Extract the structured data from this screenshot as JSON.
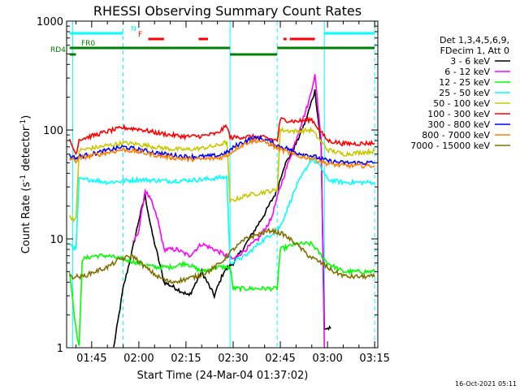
{
  "chart_data": {
    "type": "line",
    "title": "RHESSI Observing Summary Count Rates",
    "xlabel": "Start Time (24-Mar-04 01:37:02)",
    "ylabel": "Count Rate (s⁻¹ detector⁻¹)",
    "y_scale": "log",
    "ylim": [
      1,
      1000
    ],
    "xlim": [
      "01:37:02",
      "03:16:00"
    ],
    "x_ticks": [
      "01:45",
      "02:00",
      "02:15",
      "02:30",
      "02:45",
      "03:00",
      "03:15"
    ],
    "y_ticks": [
      "1",
      "10",
      "100",
      "1000"
    ],
    "grid": false,
    "legend_position": "right",
    "legend_header": [
      "Det 1,3,4,5,6,9,",
      "FDecim 1, Att 0"
    ],
    "timestamp": "16-Oct-2021 05:11",
    "flag_labels": [
      "N",
      "F",
      "FR0",
      "RD4"
    ],
    "flags": [
      {
        "label": "N",
        "color": "#00ffff",
        "segments": [
          [
            "01:38",
            "01:55"
          ],
          [
            "02:59",
            "03:15"
          ]
        ]
      },
      {
        "label": "F",
        "color": "#ff0000",
        "segments": [
          [
            "02:03",
            "02:08"
          ],
          [
            "02:19",
            "02:22"
          ],
          [
            "02:46",
            "02:47"
          ],
          [
            "02:48",
            "02:56"
          ]
        ]
      },
      {
        "label": "FR0",
        "color": "#008000",
        "segments": [
          [
            "01:38",
            "02:29"
          ],
          [
            "02:44",
            "03:15"
          ]
        ]
      },
      {
        "label": "RD4",
        "color": "#008000",
        "segments": [
          [
            "01:38",
            "01:40"
          ],
          [
            "02:29",
            "02:44"
          ]
        ]
      }
    ],
    "vertical_markers": [
      {
        "time": "01:39",
        "color": "#00ffff",
        "style": "solid"
      },
      {
        "time": "01:55",
        "color": "#00ffff",
        "style": "dashed"
      },
      {
        "time": "02:29",
        "color": "#00ffff",
        "style": "solid"
      },
      {
        "time": "02:44",
        "color": "#00ffff",
        "style": "dashed"
      },
      {
        "time": "02:59",
        "color": "#00ffff",
        "style": "solid"
      },
      {
        "time": "03:15",
        "color": "#00ffff",
        "style": "dashed"
      }
    ],
    "series": [
      {
        "name": "3 - 6 keV",
        "color": "#000000",
        "points": [
          [
            "01:52",
            1.0
          ],
          [
            "01:55",
            3.5
          ],
          [
            "01:58",
            8
          ],
          [
            "02:00",
            15
          ],
          [
            "02:02",
            25
          ],
          [
            "02:04",
            12
          ],
          [
            "02:06",
            7
          ],
          [
            "02:08",
            4
          ],
          [
            "02:12",
            3.5
          ],
          [
            "02:16",
            3
          ],
          [
            "02:20",
            5
          ],
          [
            "02:24",
            3
          ],
          [
            "02:27",
            5
          ],
          [
            "02:30",
            6
          ],
          [
            "02:33",
            8
          ],
          [
            "02:36",
            11
          ],
          [
            "02:40",
            17
          ],
          [
            "02:44",
            28
          ],
          [
            "02:46",
            45
          ],
          [
            "02:50",
            75
          ],
          [
            "02:53",
            120
          ],
          [
            "02:56",
            230
          ],
          [
            "02:58",
            70
          ],
          [
            "02:59",
            1.5
          ],
          [
            "03:01",
            1.5
          ]
        ]
      },
      {
        "name": "6 - 12 keV",
        "color": "#ff00ff",
        "points": [
          [
            "01:58",
            9
          ],
          [
            "02:00",
            12
          ],
          [
            "02:02",
            28
          ],
          [
            "02:04",
            22
          ],
          [
            "02:06",
            15
          ],
          [
            "02:08",
            8
          ],
          [
            "02:12",
            8
          ],
          [
            "02:16",
            7
          ],
          [
            "02:20",
            9
          ],
          [
            "02:24",
            8
          ],
          [
            "02:28",
            7
          ],
          [
            "02:30",
            6.5
          ],
          [
            "02:34",
            8
          ],
          [
            "02:38",
            10
          ],
          [
            "02:42",
            15
          ],
          [
            "02:45",
            30
          ],
          [
            "02:48",
            55
          ],
          [
            "02:51",
            100
          ],
          [
            "02:54",
            180
          ],
          [
            "02:56",
            320
          ],
          [
            "02:58",
            80
          ],
          [
            "02:59",
            1.0
          ]
        ]
      },
      {
        "name": "12 - 25 keV",
        "color": "#00ff00",
        "points": [
          [
            "01:38",
            5
          ],
          [
            "01:40",
            1.5
          ],
          [
            "01:41",
            1.0
          ],
          [
            "01:42",
            6.5
          ],
          [
            "01:46",
            7
          ],
          [
            "01:50",
            7
          ],
          [
            "01:55",
            6.5
          ],
          [
            "02:00",
            6
          ],
          [
            "02:05",
            5.5
          ],
          [
            "02:10",
            5.5
          ],
          [
            "02:15",
            6
          ],
          [
            "02:20",
            5
          ],
          [
            "02:25",
            5.5
          ],
          [
            "02:29",
            5.5
          ],
          [
            "02:30",
            3.5
          ],
          [
            "02:35",
            3.5
          ],
          [
            "02:40",
            3.5
          ],
          [
            "02:44",
            3.5
          ],
          [
            "02:45",
            8
          ],
          [
            "02:50",
            9
          ],
          [
            "02:55",
            9
          ],
          [
            "03:00",
            6
          ],
          [
            "03:05",
            5
          ],
          [
            "03:10",
            5
          ],
          [
            "03:15",
            5
          ]
        ]
      },
      {
        "name": "25 - 50 keV",
        "color": "#00ffff",
        "points": [
          [
            "01:38",
            9
          ],
          [
            "01:40",
            8
          ],
          [
            "01:41",
            35
          ],
          [
            "01:45",
            35
          ],
          [
            "01:50",
            33
          ],
          [
            "01:55",
            34
          ],
          [
            "02:00",
            35
          ],
          [
            "02:10",
            34
          ],
          [
            "02:20",
            35
          ],
          [
            "02:28",
            37
          ],
          [
            "02:29",
            6
          ],
          [
            "02:34",
            7
          ],
          [
            "02:38",
            9
          ],
          [
            "02:42",
            11
          ],
          [
            "02:45",
            13
          ],
          [
            "02:50",
            30
          ],
          [
            "02:55",
            55
          ],
          [
            "02:58",
            45
          ],
          [
            "03:00",
            35
          ],
          [
            "03:05",
            33
          ],
          [
            "03:10",
            33
          ],
          [
            "03:15",
            33
          ]
        ]
      },
      {
        "name": "50 - 100 keV",
        "color": "#c8c800",
        "points": [
          [
            "01:38",
            16
          ],
          [
            "01:40",
            15
          ],
          [
            "01:41",
            65
          ],
          [
            "01:45",
            68
          ],
          [
            "01:50",
            72
          ],
          [
            "01:55",
            76
          ],
          [
            "02:00",
            74
          ],
          [
            "02:05",
            70
          ],
          [
            "02:10",
            67
          ],
          [
            "02:15",
            66
          ],
          [
            "02:20",
            68
          ],
          [
            "02:25",
            72
          ],
          [
            "02:28",
            78
          ],
          [
            "02:29",
            22
          ],
          [
            "02:34",
            25
          ],
          [
            "02:40",
            27
          ],
          [
            "02:44",
            28
          ],
          [
            "02:45",
            100
          ],
          [
            "02:50",
            97
          ],
          [
            "02:55",
            100
          ],
          [
            "03:00",
            66
          ],
          [
            "03:05",
            60
          ],
          [
            "03:10",
            62
          ],
          [
            "03:15",
            64
          ]
        ]
      },
      {
        "name": "100 - 300 keV",
        "color": "#ff0000",
        "points": [
          [
            "01:38",
            80
          ],
          [
            "01:40",
            60
          ],
          [
            "01:41",
            82
          ],
          [
            "01:45",
            88
          ],
          [
            "01:50",
            97
          ],
          [
            "01:55",
            105
          ],
          [
            "02:00",
            102
          ],
          [
            "02:05",
            95
          ],
          [
            "02:10",
            90
          ],
          [
            "02:15",
            87
          ],
          [
            "02:20",
            88
          ],
          [
            "02:25",
            93
          ],
          [
            "02:28",
            110
          ],
          [
            "02:29",
            85
          ],
          [
            "02:35",
            87
          ],
          [
            "02:40",
            85
          ],
          [
            "02:44",
            80
          ],
          [
            "02:45",
            125
          ],
          [
            "02:50",
            120
          ],
          [
            "02:55",
            125
          ],
          [
            "03:00",
            80
          ],
          [
            "03:05",
            75
          ],
          [
            "03:10",
            75
          ],
          [
            "03:15",
            76
          ]
        ]
      },
      {
        "name": "300 - 800 keV",
        "color": "#0000ff",
        "points": [
          [
            "01:38",
            58
          ],
          [
            "01:40",
            55
          ],
          [
            "01:41",
            57
          ],
          [
            "01:45",
            60
          ],
          [
            "01:50",
            65
          ],
          [
            "01:55",
            70
          ],
          [
            "02:00",
            66
          ],
          [
            "02:05",
            62
          ],
          [
            "02:10",
            59
          ],
          [
            "02:15",
            57
          ],
          [
            "02:20",
            57
          ],
          [
            "02:25",
            58
          ],
          [
            "02:28",
            62
          ],
          [
            "02:31",
            72
          ],
          [
            "02:35",
            82
          ],
          [
            "02:38",
            85
          ],
          [
            "02:41",
            80
          ],
          [
            "02:44",
            72
          ],
          [
            "02:47",
            68
          ],
          [
            "02:50",
            62
          ],
          [
            "02:55",
            58
          ],
          [
            "03:00",
            52
          ],
          [
            "03:05",
            50
          ],
          [
            "03:10",
            50
          ],
          [
            "03:15",
            50
          ]
        ]
      },
      {
        "name": "800 - 7000 keV",
        "color": "#ff8000",
        "points": [
          [
            "01:38",
            55
          ],
          [
            "01:40",
            52
          ],
          [
            "01:41",
            55
          ],
          [
            "01:45",
            58
          ],
          [
            "01:50",
            62
          ],
          [
            "01:55",
            66
          ],
          [
            "02:00",
            63
          ],
          [
            "02:05",
            59
          ],
          [
            "02:10",
            56
          ],
          [
            "02:15",
            54
          ],
          [
            "02:20",
            54
          ],
          [
            "02:25",
            55
          ],
          [
            "02:28",
            58
          ],
          [
            "02:31",
            68
          ],
          [
            "02:35",
            78
          ],
          [
            "02:38",
            80
          ],
          [
            "02:41",
            76
          ],
          [
            "02:44",
            68
          ],
          [
            "02:47",
            63
          ],
          [
            "02:50",
            58
          ],
          [
            "02:55",
            55
          ],
          [
            "03:00",
            49
          ],
          [
            "03:05",
            47
          ],
          [
            "03:10",
            47
          ],
          [
            "03:15",
            47
          ]
        ]
      },
      {
        "name": "7000 - 15000 keV",
        "color": "#807000",
        "points": [
          [
            "01:38",
            4.5
          ],
          [
            "01:42",
            4.5
          ],
          [
            "01:46",
            5
          ],
          [
            "01:50",
            5.5
          ],
          [
            "01:54",
            6.5
          ],
          [
            "01:58",
            7
          ],
          [
            "02:02",
            5.5
          ],
          [
            "02:06",
            4.5
          ],
          [
            "02:10",
            4
          ],
          [
            "02:14",
            4.2
          ],
          [
            "02:18",
            4.5
          ],
          [
            "02:22",
            5
          ],
          [
            "02:26",
            6
          ],
          [
            "02:30",
            8
          ],
          [
            "02:34",
            10
          ],
          [
            "02:38",
            11
          ],
          [
            "02:42",
            12
          ],
          [
            "02:46",
            11
          ],
          [
            "02:50",
            9
          ],
          [
            "02:54",
            7
          ],
          [
            "02:58",
            6
          ],
          [
            "03:02",
            5
          ],
          [
            "03:06",
            4.5
          ],
          [
            "03:10",
            4.5
          ],
          [
            "03:15",
            4.5
          ]
        ]
      }
    ]
  }
}
